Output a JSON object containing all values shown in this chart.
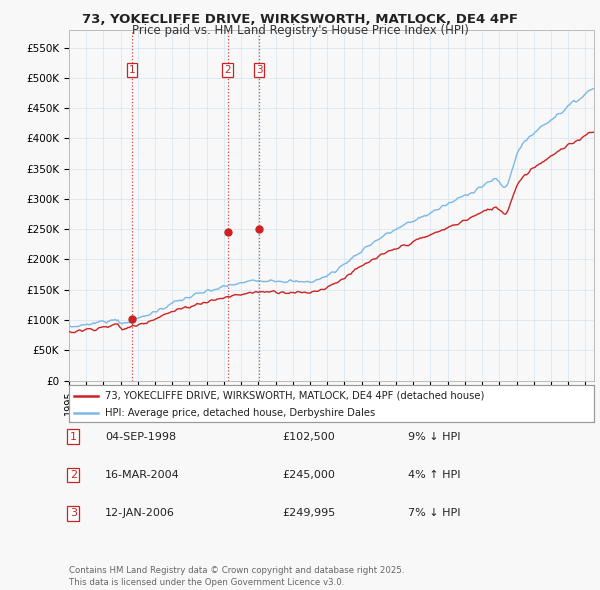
{
  "title_line1": "73, YOKECLIFFE DRIVE, WIRKSWORTH, MATLOCK, DE4 4PF",
  "title_line2": "Price paid vs. HM Land Registry's House Price Index (HPI)",
  "hpi_color": "#7ab8e8",
  "price_color": "#cc2222",
  "vline_color": "#dd4444",
  "background_color": "#f8f8f8",
  "grid_color": "#d8e8f0",
  "legend_label_price": "73, YOKECLIFFE DRIVE, WIRKSWORTH, MATLOCK, DE4 4PF (detached house)",
  "legend_label_hpi": "HPI: Average price, detached house, Derbyshire Dales",
  "transactions": [
    {
      "num": 1,
      "date_label": "04-SEP-1998",
      "price": 102500,
      "pct": "9%",
      "dir": "↓",
      "year": 1998.67
    },
    {
      "num": 2,
      "date_label": "16-MAR-2004",
      "price": 245000,
      "pct": "4%",
      "dir": "↑",
      "year": 2004.21
    },
    {
      "num": 3,
      "date_label": "12-JAN-2006",
      "price": 249995,
      "pct": "7%",
      "dir": "↓",
      "year": 2006.04
    }
  ],
  "footnote": "Contains HM Land Registry data © Crown copyright and database right 2025.\nThis data is licensed under the Open Government Licence v3.0.",
  "ylim": [
    0,
    580000
  ],
  "yticks": [
    0,
    50000,
    100000,
    150000,
    200000,
    250000,
    300000,
    350000,
    400000,
    450000,
    500000,
    550000
  ],
  "ytick_labels": [
    "£0",
    "£50K",
    "£100K",
    "£150K",
    "£200K",
    "£250K",
    "£300K",
    "£350K",
    "£400K",
    "£450K",
    "£500K",
    "£550K"
  ]
}
